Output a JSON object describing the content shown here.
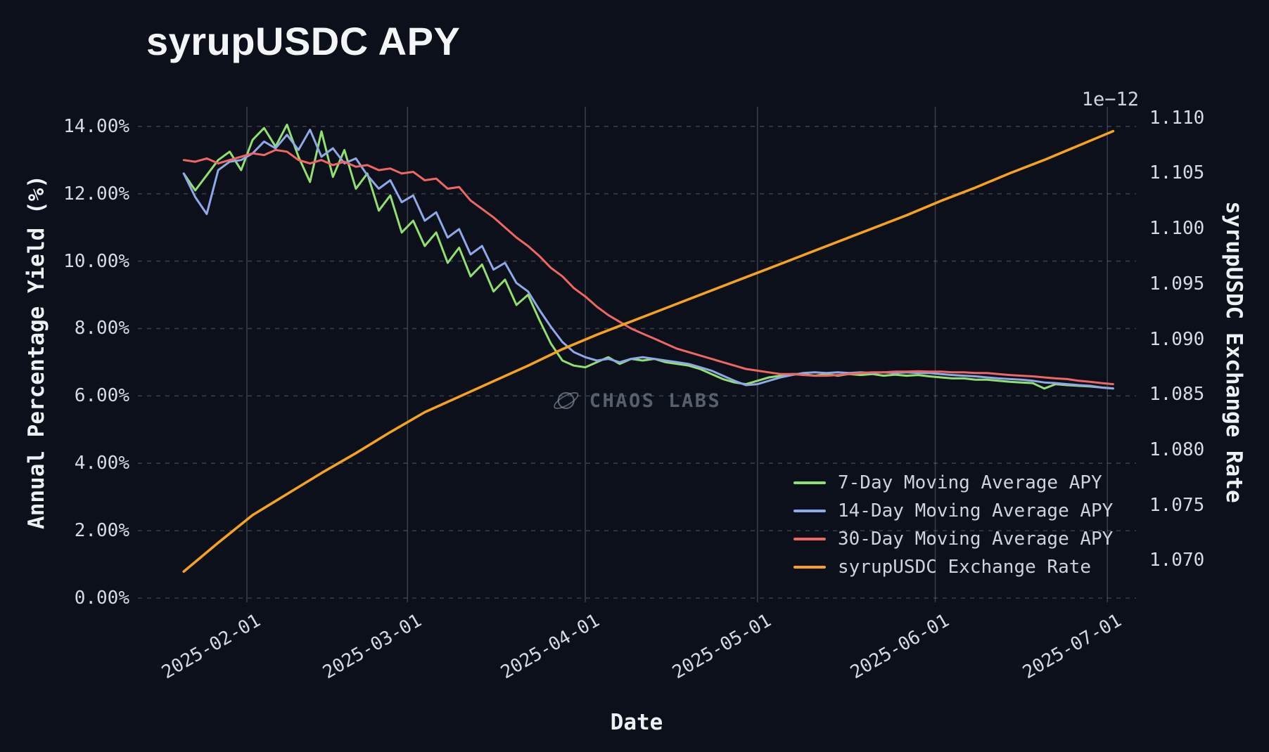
{
  "title": "syrupUSDC APY",
  "watermark": {
    "text": "CHAOS LABS"
  },
  "axes": {
    "x_label": "Date",
    "y_left_label": "Annual Percentage Yield (%)",
    "y_right_label": "syrupUSDC Exchange Rate",
    "y_right_offset": "1e−12"
  },
  "chart_data": {
    "type": "line",
    "title": "syrupUSDC APY",
    "grid": true,
    "legend_position": "lower right",
    "x_range": [
      "2025-01-13",
      "2025-07-06"
    ],
    "x_ticks": [
      {
        "date": "2025-02-01",
        "label": "2025-02-01"
      },
      {
        "date": "2025-03-01",
        "label": "2025-03-01"
      },
      {
        "date": "2025-04-01",
        "label": "2025-04-01"
      },
      {
        "date": "2025-05-01",
        "label": "2025-05-01"
      },
      {
        "date": "2025-06-01",
        "label": "2025-06-01"
      },
      {
        "date": "2025-07-01",
        "label": "2025-07-01"
      }
    ],
    "y_left": {
      "label": "Annual Percentage Yield (%)",
      "min": 0,
      "max": 14.58,
      "ticks": [
        {
          "value": 0,
          "label": "0.00%"
        },
        {
          "value": 2,
          "label": "2.00%"
        },
        {
          "value": 4,
          "label": "4.00%"
        },
        {
          "value": 6,
          "label": "6.00%"
        },
        {
          "value": 8,
          "label": "8.00%"
        },
        {
          "value": 10,
          "label": "10.00%"
        },
        {
          "value": 12,
          "label": "12.00%"
        },
        {
          "value": 14,
          "label": "14.00%"
        }
      ]
    },
    "y_right": {
      "label": "syrupUSDC Exchange Rate",
      "offset": "1e−12",
      "min": 1.0666,
      "max": 1.111,
      "ticks": [
        {
          "value": 1.07,
          "label": "1.070"
        },
        {
          "value": 1.075,
          "label": "1.075"
        },
        {
          "value": 1.08,
          "label": "1.080"
        },
        {
          "value": 1.085,
          "label": "1.085"
        },
        {
          "value": 1.09,
          "label": "1.090"
        },
        {
          "value": 1.095,
          "label": "1.095"
        },
        {
          "value": 1.1,
          "label": "1.100"
        },
        {
          "value": 1.105,
          "label": "1.105"
        },
        {
          "value": 1.11,
          "label": "1.110"
        }
      ]
    },
    "series": [
      {
        "name": "7-Day Moving Average APY",
        "color": "#90e070",
        "axis": "left",
        "unit": "%",
        "start": "2025-01-21",
        "step_days": 2,
        "values": [
          12.6,
          12.1,
          12.55,
          13.0,
          13.25,
          12.7,
          13.6,
          13.95,
          13.4,
          14.05,
          13.1,
          12.35,
          13.85,
          12.5,
          13.3,
          12.15,
          12.6,
          11.5,
          11.95,
          10.85,
          11.2,
          10.45,
          10.85,
          9.95,
          10.4,
          9.55,
          9.9,
          9.1,
          9.45,
          8.7,
          9.0,
          8.25,
          7.55,
          7.05,
          6.9,
          6.85,
          7.0,
          7.15,
          6.95,
          7.1,
          7.05,
          7.1,
          7.0,
          6.95,
          6.9,
          6.8,
          6.65,
          6.5,
          6.4,
          6.35,
          6.45,
          6.55,
          6.6,
          6.65,
          6.65,
          6.6,
          6.65,
          6.6,
          6.65,
          6.62,
          6.65,
          6.6,
          6.63,
          6.6,
          6.62,
          6.58,
          6.55,
          6.52,
          6.52,
          6.48,
          6.48,
          6.45,
          6.42,
          6.4,
          6.38,
          6.22,
          6.35,
          6.32,
          6.3,
          6.28,
          6.25,
          6.22
        ]
      },
      {
        "name": "14-Day Moving Average APY",
        "color": "#8fa8e8",
        "axis": "left",
        "unit": "%",
        "start": "2025-01-21",
        "step_days": 2,
        "values": [
          12.6,
          11.9,
          11.4,
          12.7,
          12.95,
          13.0,
          13.2,
          13.55,
          13.35,
          13.75,
          13.3,
          13.9,
          13.1,
          13.35,
          12.9,
          13.05,
          12.55,
          12.15,
          12.4,
          11.75,
          11.95,
          11.2,
          11.45,
          10.7,
          10.95,
          10.2,
          10.45,
          9.75,
          9.95,
          9.35,
          9.1,
          8.55,
          8.05,
          7.6,
          7.3,
          7.15,
          7.05,
          7.1,
          7.0,
          7.1,
          7.15,
          7.1,
          7.05,
          7.0,
          6.95,
          6.85,
          6.75,
          6.6,
          6.45,
          6.32,
          6.35,
          6.45,
          6.55,
          6.62,
          6.68,
          6.7,
          6.68,
          6.7,
          6.68,
          6.7,
          6.68,
          6.7,
          6.68,
          6.7,
          6.68,
          6.68,
          6.65,
          6.62,
          6.6,
          6.58,
          6.55,
          6.52,
          6.5,
          6.48,
          6.45,
          6.4,
          6.38,
          6.35,
          6.32,
          6.3,
          6.25,
          6.22
        ]
      },
      {
        "name": "30-Day Moving Average APY",
        "color": "#ef6663",
        "axis": "left",
        "unit": "%",
        "start": "2025-01-21",
        "step_days": 2,
        "values": [
          13.0,
          12.95,
          13.05,
          12.9,
          13.0,
          13.1,
          13.2,
          13.15,
          13.3,
          13.25,
          13.0,
          12.9,
          13.0,
          12.85,
          12.95,
          12.8,
          12.85,
          12.7,
          12.75,
          12.6,
          12.65,
          12.4,
          12.45,
          12.15,
          12.2,
          11.8,
          11.55,
          11.3,
          11.0,
          10.7,
          10.45,
          10.15,
          9.8,
          9.55,
          9.2,
          8.95,
          8.65,
          8.4,
          8.2,
          8.0,
          7.85,
          7.7,
          7.55,
          7.4,
          7.3,
          7.2,
          7.1,
          7.0,
          6.9,
          6.8,
          6.75,
          6.7,
          6.65,
          6.65,
          6.62,
          6.6,
          6.6,
          6.62,
          6.65,
          6.68,
          6.7,
          6.7,
          6.72,
          6.72,
          6.73,
          6.72,
          6.72,
          6.7,
          6.7,
          6.68,
          6.68,
          6.65,
          6.62,
          6.6,
          6.58,
          6.55,
          6.52,
          6.5,
          6.45,
          6.42,
          6.38,
          6.35
        ]
      },
      {
        "name": "syrupUSDC Exchange Rate",
        "color": "#f6a21d",
        "axis": "right",
        "unit": "",
        "start": "2025-01-21",
        "step_days": 6,
        "values": [
          1.069,
          1.0716,
          1.0741,
          1.076,
          1.0779,
          1.0797,
          1.0816,
          1.0834,
          1.0848,
          1.0862,
          1.0876,
          1.0891,
          1.0904,
          1.0916,
          1.0928,
          1.094,
          1.0952,
          1.0964,
          1.0976,
          1.0988,
          1.1,
          1.1012,
          1.1025,
          1.1037,
          1.105,
          1.1062,
          1.1075,
          1.1088
        ]
      }
    ]
  }
}
